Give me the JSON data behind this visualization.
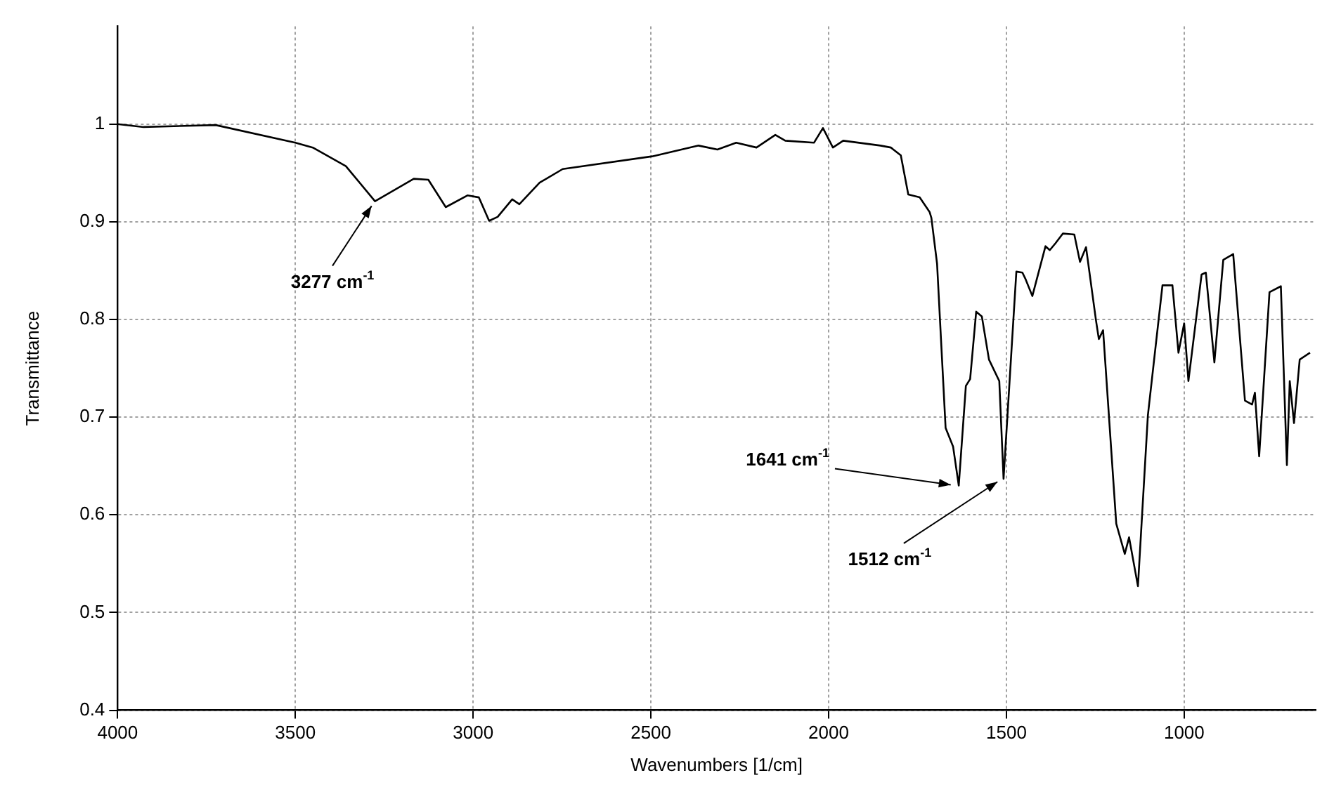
{
  "chart_data": {
    "type": "line",
    "xlabel": "Wavenumbers [1/cm]",
    "ylabel": "Transmittance",
    "xlim": [
      4000,
      630
    ],
    "xticks": [
      4000,
      3500,
      3000,
      2500,
      2000,
      1500,
      1000
    ],
    "ylim": [
      0.4,
      1.1
    ],
    "yticks": [
      0.4,
      0.5,
      0.6,
      0.7,
      0.8,
      0.9,
      1
    ],
    "grid": true,
    "legend": false,
    "marker": "none",
    "line_style": "solid",
    "x": [
      4000,
      3927,
      3724,
      3500,
      3451,
      3358,
      3276,
      3167,
      3126,
      3077,
      3016,
      2984,
      2955,
      2931,
      2890,
      2870,
      2813,
      2748,
      2496,
      2366,
      2313,
      2260,
      2203,
      2150,
      2122,
      2041,
      2016,
      1988,
      1959,
      1854,
      1825,
      1797,
      1776,
      1744,
      1716,
      1711,
      1695,
      1671,
      1650,
      1634,
      1614,
      1602,
      1585,
      1569,
      1549,
      1520,
      1508,
      1472,
      1455,
      1447,
      1427,
      1390,
      1378,
      1362,
      1341,
      1309,
      1293,
      1276,
      1248,
      1240,
      1228,
      1191,
      1167,
      1155,
      1130,
      1102,
      1061,
      1033,
      1016,
      1000,
      988,
      951,
      939,
      915,
      890,
      862,
      829,
      809,
      801,
      789,
      760,
      728,
      711,
      703,
      691,
      675,
      646
    ],
    "series": [
      {
        "color": "#000000",
        "values": [
          1.0,
          0.997,
          0.999,
          0.981,
          0.976,
          0.957,
          0.921,
          0.944,
          0.943,
          0.915,
          0.927,
          0.925,
          0.901,
          0.905,
          0.923,
          0.918,
          0.94,
          0.954,
          0.967,
          0.978,
          0.974,
          0.981,
          0.976,
          0.989,
          0.983,
          0.981,
          0.996,
          0.976,
          0.983,
          0.978,
          0.976,
          0.968,
          0.928,
          0.925,
          0.91,
          0.904,
          0.857,
          0.689,
          0.67,
          0.63,
          0.732,
          0.739,
          0.808,
          0.803,
          0.759,
          0.737,
          0.637,
          0.849,
          0.848,
          0.842,
          0.824,
          0.875,
          0.871,
          0.878,
          0.888,
          0.887,
          0.859,
          0.874,
          0.799,
          0.78,
          0.789,
          0.591,
          0.56,
          0.577,
          0.527,
          0.702,
          0.835,
          0.835,
          0.766,
          0.796,
          0.737,
          0.846,
          0.848,
          0.756,
          0.861,
          0.867,
          0.717,
          0.713,
          0.725,
          0.66,
          0.828,
          0.834,
          0.651,
          0.737,
          0.694,
          0.759,
          0.766
        ]
      }
    ],
    "annotations": [
      {
        "text": "3277 cm$^{-1}$",
        "x": 3277,
        "y": 0.921
      },
      {
        "text": "1641 cm$^{-1}$",
        "x": 1641,
        "y": 0.63
      },
      {
        "text": "1512 cm$^{-1}$",
        "x": 1512,
        "y": 0.637
      }
    ]
  }
}
